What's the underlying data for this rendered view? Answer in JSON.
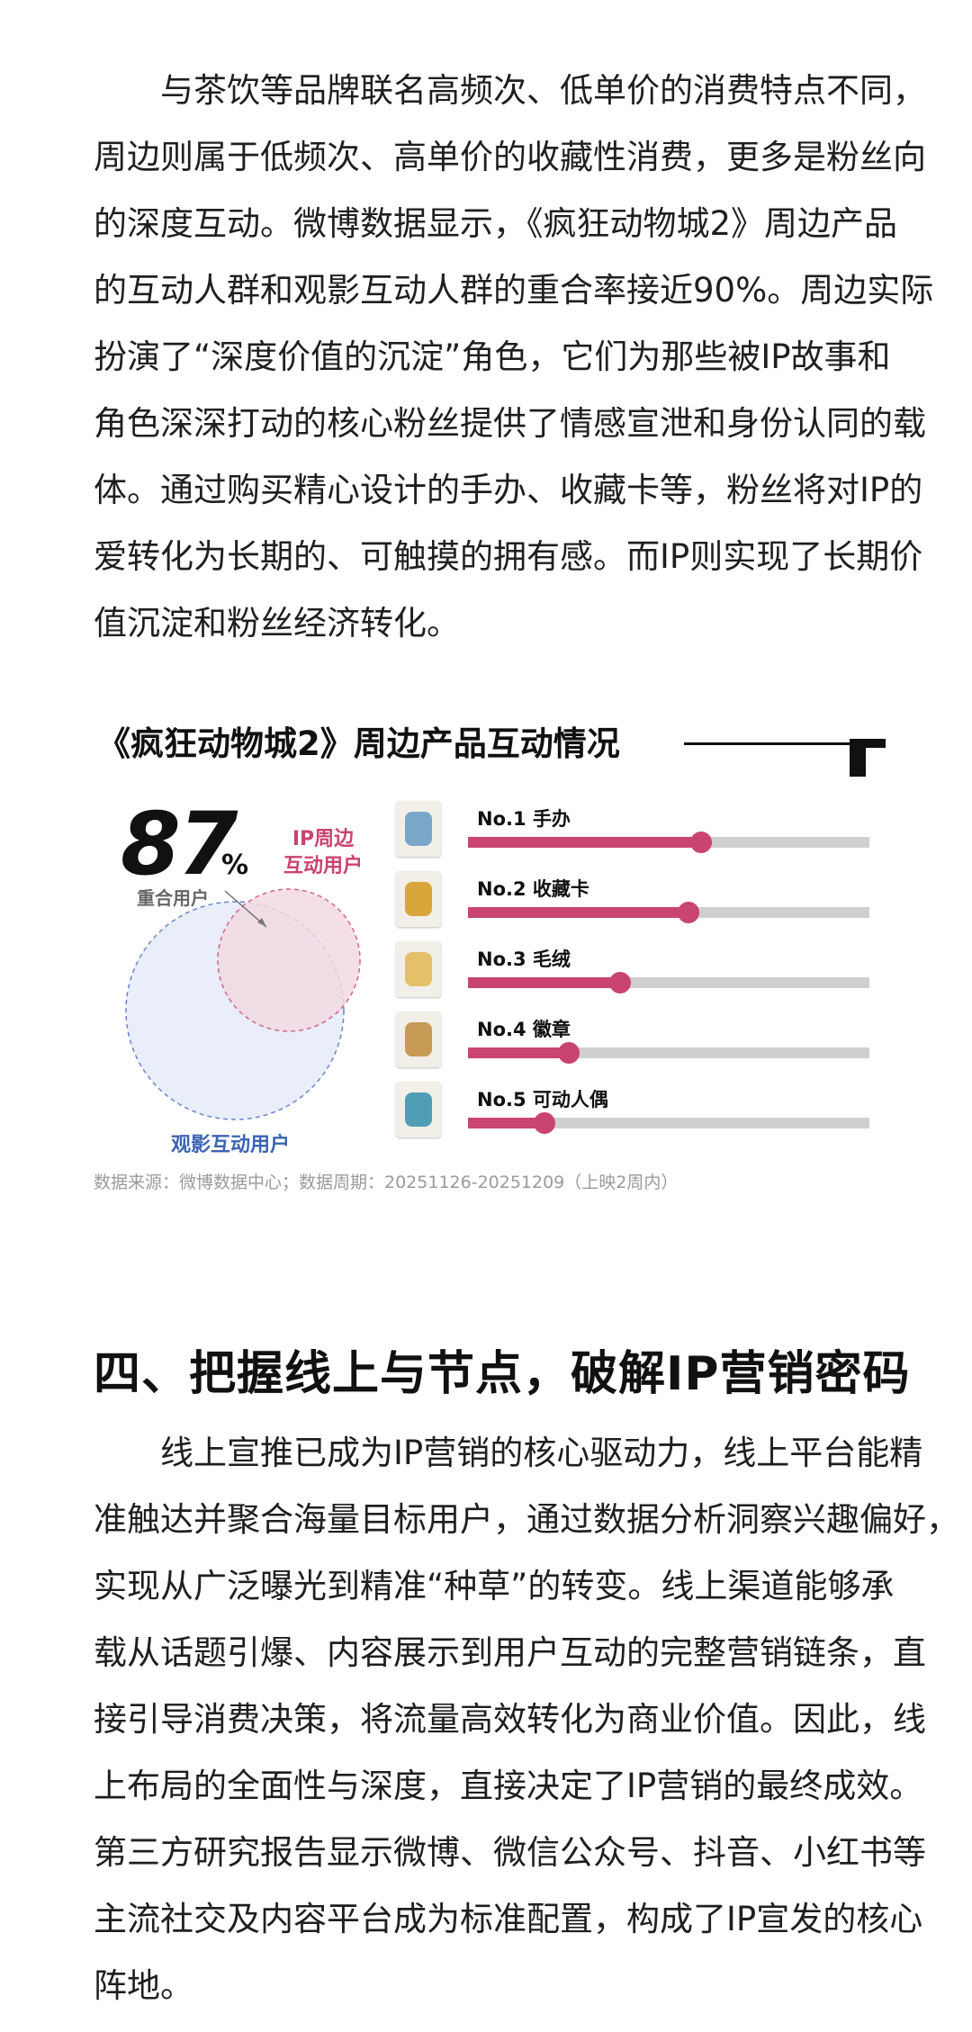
{
  "intro": {
    "lines": [
      "与茶饮等品牌联名高频次、低单价的消费特点不同，",
      "周边则属于低频次、高单价的收藏性消费，更多是粉丝向",
      "的深度互动。微博数据显示，《疯狂动物城2》周边产品",
      "的互动人群和观影互动人群的重合率接近90%。周边实际",
      "扮演了“深度价值的沉淀”角色，它们为那些被IP故事和",
      "角色深深打动的核心粉丝提供了情感宣泄和身份认同的载",
      "体。通过购买精心设计的手办、收藏卡等，粉丝将对IP的",
      "爱转化为长期的、可触摸的拥有感。而IP则实现了长期价",
      "值沉淀和粉丝经济转化。"
    ]
  },
  "figure": {
    "title": "《疯狂动物城2》周边产品互动情况",
    "overlap_value": "87",
    "overlap_unit": "%",
    "overlap_label": "重合用户",
    "ip_label_line1": "IP周边",
    "ip_label_line2": "互动用户",
    "film_label": "观影互动用户",
    "colors": {
      "accent": "#c9446e",
      "track": "#cfcfcf",
      "film_circle": "#6a86c9",
      "ip_circle": "#d2648a"
    },
    "source": "数据来源：微博数据中心；数据周期：20251126-20251209（上映2周内）"
  },
  "chart_data": {
    "type": "bar",
    "categories": [
      "No.1 手办",
      "No.2 收藏卡",
      "No.3 毛绒",
      "No.4 徽章",
      "No.5 可动人偶"
    ],
    "values": [
      0.58,
      0.55,
      0.38,
      0.25,
      0.19
    ],
    "thumb_colors": [
      "#7aa6c8",
      "#d8a63a",
      "#e4c06a",
      "#c79a55",
      "#4f9eb5"
    ]
  },
  "section": {
    "title": "四、把握线上与节点，破解IP营销密码",
    "lines": [
      "线上宣推已成为IP营销的核心驱动力，线上平台能精",
      "准触达并聚合海量目标用户，通过数据分析洞察兴趣偏好，",
      "实现从广泛曝光到精准“种草”的转变。线上渠道能够承",
      "载从话题引爆、内容展示到用户互动的完整营销链条，直",
      "接引导消费决策，将流量高效转化为商业价值。因此，线",
      "上布局的全面性与深度，直接决定了IP营销的最终成效。",
      "第三方研究报告显示微博、微信公众号、抖音、小红书等",
      "主流社交及内容平台成为标准配置，构成了IP宣发的核心",
      "阵地。"
    ]
  }
}
